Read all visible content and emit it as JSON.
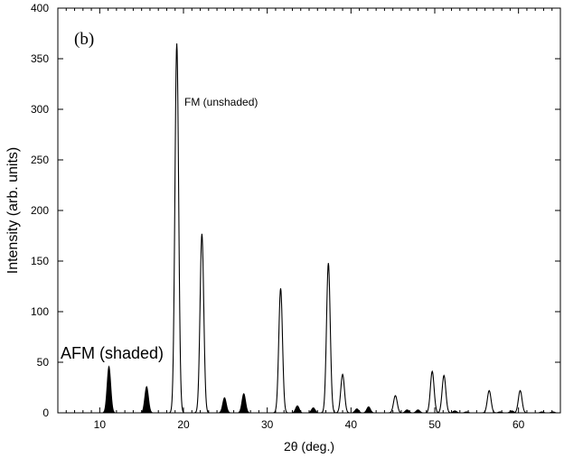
{
  "chart_data": {
    "type": "line",
    "panel_label": "(b)",
    "title": "",
    "xlabel": "2θ (deg.)",
    "ylabel": "Intensity (arb. units)",
    "xlim": [
      5,
      65
    ],
    "ylim": [
      0,
      400
    ],
    "xticks": [
      10,
      20,
      30,
      40,
      50,
      60
    ],
    "yticks": [
      0,
      50,
      100,
      150,
      200,
      250,
      300,
      350,
      400
    ],
    "grid": false,
    "annotations": [
      {
        "id": "fm",
        "text": "FM (unshaded)"
      },
      {
        "id": "afm",
        "text": "AFM (shaded)"
      }
    ],
    "series": [
      {
        "name": "FM (unshaded)",
        "style": "outline",
        "color": "#000000",
        "peaks": [
          {
            "x": 19.2,
            "y": 365
          },
          {
            "x": 22.2,
            "y": 177
          },
          {
            "x": 31.6,
            "y": 123
          },
          {
            "x": 37.3,
            "y": 148
          },
          {
            "x": 39.0,
            "y": 38
          },
          {
            "x": 45.3,
            "y": 17
          },
          {
            "x": 49.7,
            "y": 41
          },
          {
            "x": 51.1,
            "y": 37
          },
          {
            "x": 56.5,
            "y": 22
          },
          {
            "x": 60.2,
            "y": 22
          }
        ]
      },
      {
        "name": "AFM (shaded)",
        "style": "filled",
        "color": "#000000",
        "peaks": [
          {
            "x": 11.1,
            "y": 46
          },
          {
            "x": 15.6,
            "y": 26
          },
          {
            "x": 24.9,
            "y": 15
          },
          {
            "x": 27.2,
            "y": 19
          },
          {
            "x": 33.6,
            "y": 7
          },
          {
            "x": 35.5,
            "y": 5
          },
          {
            "x": 40.7,
            "y": 4
          },
          {
            "x": 42.1,
            "y": 6
          },
          {
            "x": 46.7,
            "y": 3
          },
          {
            "x": 48.0,
            "y": 3
          },
          {
            "x": 52.4,
            "y": 2
          },
          {
            "x": 53.8,
            "y": 1
          },
          {
            "x": 57.8,
            "y": 1
          },
          {
            "x": 59.2,
            "y": 2
          },
          {
            "x": 62.8,
            "y": 1
          },
          {
            "x": 64.1,
            "y": 1
          }
        ]
      }
    ]
  }
}
